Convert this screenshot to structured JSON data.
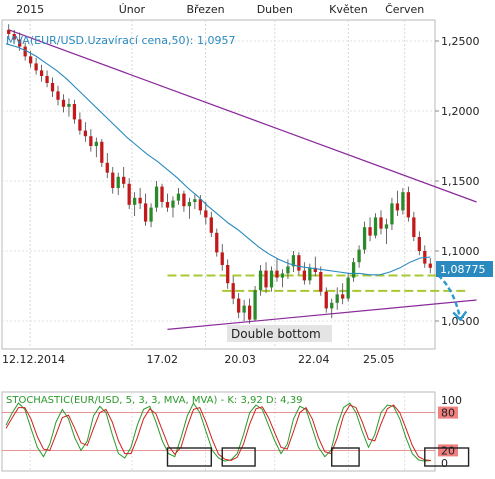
{
  "chart_data": [
    {
      "type": "candlestick",
      "pair": "EUR/USD",
      "top_axis_labels": [
        "2015",
        "Únor",
        "Březen",
        "Duben",
        "Květen",
        "Červen"
      ],
      "bottom_axis_labels": [
        "12.12.2014",
        "17.02",
        "20.03",
        "22.04",
        "25.05"
      ],
      "y_ticks": [
        "1,2500",
        "1,2000",
        "1,1500",
        "1,1000",
        "1,0500"
      ],
      "ylim": [
        1.03,
        1.265
      ],
      "grid": true,
      "indicator_label": "MVA(EUR/USD.Uzavírací cena,50): 1,0957",
      "last_price_label": "1,08775",
      "annotation": "Double bottom",
      "candles": [
        [
          1.258,
          1.262,
          1.251,
          1.255
        ],
        [
          1.255,
          1.258,
          1.248,
          1.251
        ],
        [
          1.251,
          1.256,
          1.243,
          1.246
        ],
        [
          1.246,
          1.249,
          1.236,
          1.239
        ],
        [
          1.239,
          1.243,
          1.231,
          1.234
        ],
        [
          1.234,
          1.238,
          1.226,
          1.229
        ],
        [
          1.229,
          1.233,
          1.221,
          1.225
        ],
        [
          1.225,
          1.229,
          1.217,
          1.22
        ],
        [
          1.22,
          1.224,
          1.21,
          1.214
        ],
        [
          1.214,
          1.218,
          1.204,
          1.208
        ],
        [
          1.208,
          1.212,
          1.199,
          1.203
        ],
        [
          1.203,
          1.209,
          1.196,
          1.205
        ],
        [
          1.205,
          1.208,
          1.191,
          1.194
        ],
        [
          1.194,
          1.199,
          1.183,
          1.186
        ],
        [
          1.186,
          1.192,
          1.178,
          1.182
        ],
        [
          1.182,
          1.187,
          1.171,
          1.175
        ],
        [
          1.175,
          1.181,
          1.167,
          1.178
        ],
        [
          1.178,
          1.18,
          1.16,
          1.163
        ],
        [
          1.163,
          1.17,
          1.152,
          1.156
        ],
        [
          1.156,
          1.16,
          1.141,
          1.145
        ],
        [
          1.145,
          1.156,
          1.14,
          1.153
        ],
        [
          1.153,
          1.16,
          1.145,
          1.148
        ],
        [
          1.148,
          1.152,
          1.13,
          1.133
        ],
        [
          1.133,
          1.142,
          1.125,
          1.138
        ],
        [
          1.138,
          1.145,
          1.13,
          1.134
        ],
        [
          1.134,
          1.141,
          1.118,
          1.121
        ],
        [
          1.121,
          1.134,
          1.117,
          1.131
        ],
        [
          1.131,
          1.15,
          1.128,
          1.146
        ],
        [
          1.146,
          1.148,
          1.131,
          1.135
        ],
        [
          1.135,
          1.141,
          1.128,
          1.131
        ],
        [
          1.131,
          1.139,
          1.124,
          1.136
        ],
        [
          1.136,
          1.145,
          1.133,
          1.141
        ],
        [
          1.141,
          1.143,
          1.128,
          1.132
        ],
        [
          1.132,
          1.138,
          1.123,
          1.135
        ],
        [
          1.135,
          1.141,
          1.13,
          1.137
        ],
        [
          1.137,
          1.14,
          1.126,
          1.129
        ],
        [
          1.129,
          1.135,
          1.119,
          1.124
        ],
        [
          1.124,
          1.128,
          1.11,
          1.113
        ],
        [
          1.113,
          1.116,
          1.096,
          1.099
        ],
        [
          1.099,
          1.105,
          1.086,
          1.09
        ],
        [
          1.09,
          1.094,
          1.073,
          1.077
        ],
        [
          1.077,
          1.082,
          1.062,
          1.066
        ],
        [
          1.066,
          1.07,
          1.052,
          1.056
        ],
        [
          1.056,
          1.065,
          1.05,
          1.061
        ],
        [
          1.061,
          1.066,
          1.048,
          1.051
        ],
        [
          1.051,
          1.075,
          1.05,
          1.072
        ],
        [
          1.072,
          1.09,
          1.068,
          1.086
        ],
        [
          1.086,
          1.092,
          1.07,
          1.074
        ],
        [
          1.074,
          1.089,
          1.071,
          1.086
        ],
        [
          1.086,
          1.095,
          1.078,
          1.081
        ],
        [
          1.081,
          1.087,
          1.074,
          1.084
        ],
        [
          1.084,
          1.094,
          1.08,
          1.089
        ],
        [
          1.089,
          1.1,
          1.085,
          1.097
        ],
        [
          1.097,
          1.099,
          1.083,
          1.086
        ],
        [
          1.086,
          1.092,
          1.076,
          1.079
        ],
        [
          1.079,
          1.091,
          1.076,
          1.088
        ],
        [
          1.088,
          1.096,
          1.082,
          1.085
        ],
        [
          1.085,
          1.089,
          1.068,
          1.071
        ],
        [
          1.071,
          1.074,
          1.056,
          1.059
        ],
        [
          1.059,
          1.066,
          1.052,
          1.063
        ],
        [
          1.063,
          1.074,
          1.058,
          1.069
        ],
        [
          1.069,
          1.077,
          1.062,
          1.066
        ],
        [
          1.066,
          1.084,
          1.064,
          1.081
        ],
        [
          1.081,
          1.095,
          1.078,
          1.092
        ],
        [
          1.092,
          1.104,
          1.088,
          1.101
        ],
        [
          1.101,
          1.121,
          1.098,
          1.117
        ],
        [
          1.117,
          1.124,
          1.107,
          1.111
        ],
        [
          1.111,
          1.127,
          1.109,
          1.124
        ],
        [
          1.124,
          1.129,
          1.112,
          1.116
        ],
        [
          1.116,
          1.123,
          1.105,
          1.119
        ],
        [
          1.119,
          1.138,
          1.115,
          1.134
        ],
        [
          1.134,
          1.143,
          1.125,
          1.129
        ],
        [
          1.129,
          1.145,
          1.126,
          1.142
        ],
        [
          1.142,
          1.146,
          1.121,
          1.124
        ],
        [
          1.124,
          1.128,
          1.107,
          1.11
        ],
        [
          1.11,
          1.114,
          1.097,
          1.1
        ],
        [
          1.1,
          1.104,
          1.088,
          1.091
        ],
        [
          1.091,
          1.095,
          1.084,
          1.088
        ]
      ],
      "ma50": [
        1.248,
        1.246,
        1.243,
        1.239,
        1.234,
        1.229,
        1.223,
        1.216,
        1.209,
        1.202,
        1.195,
        1.188,
        1.181,
        1.175,
        1.169,
        1.164,
        1.158,
        1.152,
        1.145,
        1.139,
        1.132,
        1.126,
        1.12,
        1.115,
        1.109,
        1.103,
        1.098,
        1.094,
        1.091,
        1.089,
        1.088,
        1.087,
        1.086,
        1.085,
        1.084,
        1.084,
        1.083,
        1.083,
        1.085,
        1.088,
        1.092,
        1.095,
        1.0957
      ],
      "trendlines": [
        {
          "name": "upper-trendline",
          "from": {
            "x": 0,
            "y": 1.258
          },
          "to": {
            "x": 84,
            "y": 1.135
          }
        },
        {
          "name": "lower-trendline",
          "from": {
            "x": 29,
            "y": 1.044
          },
          "to": {
            "x": 84,
            "y": 1.065
          }
        }
      ],
      "support_levels": [
        1.0825,
        1.0715
      ]
    },
    {
      "type": "line",
      "indicator_label": "STOCHASTIC(EUR/USD, 5, 3, 3, MVA, MVA) - K: 3,92 D: 4,39",
      "y_ticks": [
        "100",
        "80",
        "20",
        "0"
      ],
      "ylim": [
        0,
        100
      ],
      "overbought": 80,
      "oversold": 20,
      "series": [
        {
          "name": "K",
          "color": "#2a9a2a",
          "values": [
            60,
            80,
            95,
            85,
            55,
            25,
            10,
            30,
            65,
            85,
            70,
            40,
            20,
            35,
            75,
            90,
            80,
            45,
            15,
            8,
            25,
            60,
            85,
            90,
            65,
            35,
            15,
            10,
            40,
            75,
            95,
            80,
            50,
            20,
            8,
            3,
            5,
            15,
            45,
            80,
            92,
            85,
            60,
            35,
            15,
            30,
            70,
            90,
            85,
            55,
            25,
            10,
            20,
            60,
            88,
            95,
            80,
            50,
            25,
            45,
            80,
            92,
            90,
            70,
            40,
            15,
            5,
            3,
            4
          ]
        },
        {
          "name": "D",
          "color": "#d02020",
          "values": [
            55,
            72,
            88,
            88,
            70,
            42,
            22,
            20,
            45,
            72,
            76,
            55,
            32,
            28,
            55,
            80,
            85,
            65,
            35,
            15,
            15,
            40,
            70,
            86,
            78,
            52,
            27,
            14,
            25,
            58,
            85,
            88,
            65,
            37,
            14,
            6,
            4,
            9,
            30,
            62,
            86,
            89,
            72,
            48,
            25,
            22,
            50,
            80,
            88,
            70,
            40,
            18,
            15,
            40,
            75,
            92,
            88,
            65,
            38,
            35,
            62,
            86,
            92,
            80,
            55,
            28,
            10,
            5,
            4
          ]
        }
      ],
      "boxes": [
        [
          29,
          37
        ],
        [
          39,
          45
        ],
        [
          59,
          64
        ],
        [
          76,
          84
        ]
      ]
    }
  ]
}
